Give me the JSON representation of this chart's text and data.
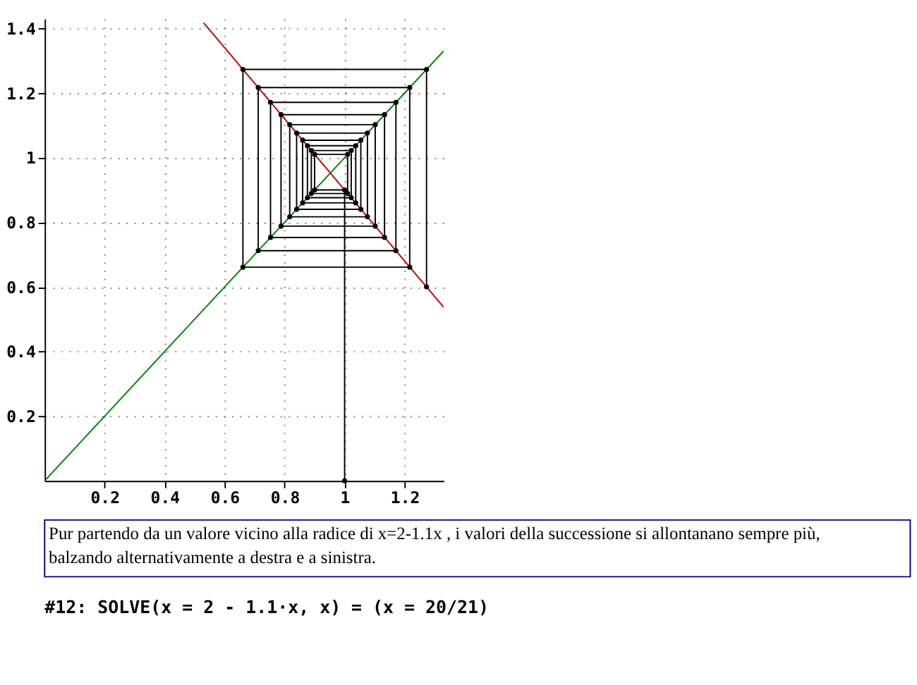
{
  "chart_data": {
    "type": "line",
    "xlim": [
      0,
      1.33
    ],
    "ylim": [
      0,
      1.43
    ],
    "xticks": [
      0.2,
      0.4,
      0.6,
      0.8,
      1,
      1.2
    ],
    "yticks": [
      0.2,
      0.4,
      0.6,
      0.8,
      1,
      1.2,
      1.4
    ],
    "grid": true,
    "line_style": "solid",
    "series": [
      {
        "color": "#008000",
        "marker": "none",
        "x": [
          0,
          1.33
        ],
        "values": [
          0,
          1.33
        ]
      },
      {
        "color": "#c00000",
        "marker": "none",
        "x": [
          0.53,
          1.33
        ],
        "values": [
          1.417,
          0.537
        ]
      },
      {
        "color": "#000000",
        "marker": "circle",
        "x": [
          1,
          1,
          0.9,
          0.9,
          1.01,
          1.01,
          0.889,
          0.889,
          1.022,
          1.022,
          0.876,
          0.876,
          1.037,
          1.037,
          0.86,
          0.86,
          1.054,
          1.054,
          0.84,
          0.84,
          1.076,
          1.076,
          0.817,
          0.817,
          1.102,
          1.102,
          0.788,
          0.788,
          1.133,
          1.133,
          0.753,
          0.753,
          1.171,
          1.171,
          0.712,
          0.712,
          1.217,
          1.217,
          0.661,
          0.661,
          1.273,
          1.273
        ],
        "values": [
          0,
          0.9,
          0.9,
          1.01,
          1.01,
          0.889,
          0.889,
          1.022,
          1.022,
          0.876,
          0.876,
          1.037,
          1.037,
          0.86,
          0.86,
          1.054,
          1.054,
          0.84,
          0.84,
          1.076,
          1.076,
          0.817,
          0.817,
          1.102,
          1.102,
          0.788,
          0.788,
          1.133,
          1.133,
          0.753,
          0.753,
          1.171,
          1.171,
          0.712,
          0.712,
          1.217,
          1.217,
          0.661,
          0.661,
          1.273,
          1.273,
          0.6
        ]
      }
    ],
    "annotations": [
      "Pur partendo da un valore vicino alla radice di x=2-1.1x , i valori della successione si allontanano sempre più, balzando alternativamente a destra e a sinistra.",
      "#12:  SOLVE(x = 2 - 1.1·x, x) = (x = 20/21)"
    ]
  }
}
